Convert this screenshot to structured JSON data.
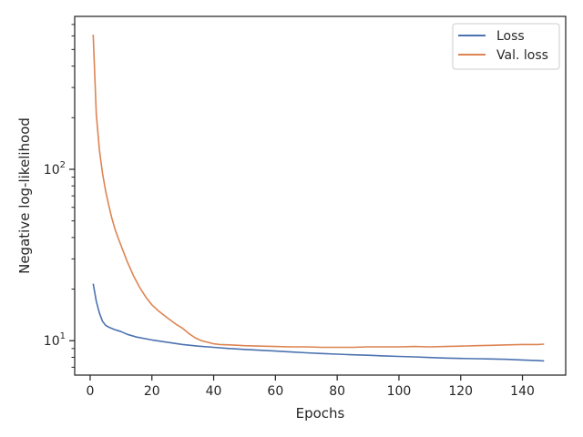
{
  "chart_data": {
    "type": "line",
    "xlabel": "Epochs",
    "ylabel": "Negative log-likelihood",
    "yscale": "log",
    "xlim": [
      -5,
      154
    ],
    "ylim": [
      6.3,
      780
    ],
    "xticks": [
      0,
      20,
      40,
      60,
      80,
      100,
      120,
      140
    ],
    "yticks": [
      {
        "value": 10,
        "base": "10",
        "exp": "1"
      },
      {
        "value": 100,
        "base": "10",
        "exp": "2"
      }
    ],
    "legend": {
      "position": "top-right"
    },
    "grid": false,
    "colors": {
      "loss": "#4c72b0",
      "val_loss": "#dd8452"
    },
    "series": [
      {
        "name": "Loss",
        "color": "#4c72b0",
        "x": [
          1,
          2,
          3,
          4,
          5,
          6,
          7,
          8,
          10,
          12,
          15,
          20,
          25,
          30,
          35,
          40,
          45,
          50,
          55,
          60,
          65,
          70,
          75,
          80,
          85,
          90,
          95,
          100,
          105,
          110,
          115,
          120,
          125,
          130,
          135,
          140,
          145,
          147
        ],
        "y": [
          21.5,
          17.0,
          14.5,
          13.0,
          12.3,
          12.0,
          11.8,
          11.6,
          11.3,
          10.9,
          10.5,
          10.1,
          9.8,
          9.5,
          9.3,
          9.15,
          9.0,
          8.9,
          8.8,
          8.7,
          8.6,
          8.5,
          8.42,
          8.35,
          8.28,
          8.22,
          8.15,
          8.1,
          8.05,
          7.98,
          7.92,
          7.88,
          7.85,
          7.82,
          7.78,
          7.72,
          7.65,
          7.62
        ]
      },
      {
        "name": "Val. loss",
        "color": "#dd8452",
        "x": [
          1,
          2,
          3,
          4,
          5,
          6,
          7,
          8,
          9,
          10,
          12,
          14,
          16,
          18,
          20,
          22,
          25,
          28,
          30,
          32,
          34,
          36,
          38,
          40,
          42,
          45,
          48,
          50,
          55,
          60,
          65,
          70,
          75,
          80,
          85,
          90,
          95,
          100,
          105,
          110,
          115,
          120,
          125,
          130,
          135,
          140,
          145,
          147
        ],
        "y": [
          610,
          210,
          130,
          95,
          75,
          62,
          52,
          45,
          40,
          36,
          29,
          24,
          20.5,
          18,
          16.2,
          15.0,
          13.6,
          12.4,
          11.8,
          11.0,
          10.4,
          10.0,
          9.8,
          9.6,
          9.5,
          9.45,
          9.4,
          9.35,
          9.3,
          9.25,
          9.2,
          9.2,
          9.15,
          9.15,
          9.15,
          9.2,
          9.2,
          9.2,
          9.25,
          9.2,
          9.25,
          9.3,
          9.35,
          9.4,
          9.45,
          9.5,
          9.5,
          9.55
        ]
      }
    ]
  }
}
